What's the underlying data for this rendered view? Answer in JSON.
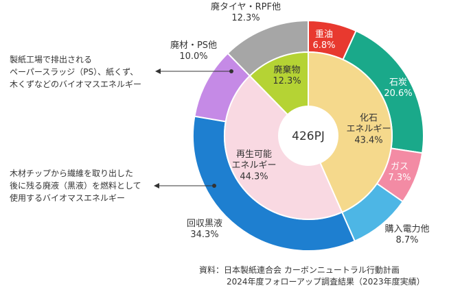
{
  "chart_data": {
    "type": "pie",
    "center_label": "426PJ",
    "inner_ring": [
      {
        "name": "化石\nエネルギー",
        "value": 43.4,
        "label": "43.4%",
        "color": "#f5d98c",
        "text_color": "#333333"
      },
      {
        "name": "再生可能\nエネルギー",
        "value": 44.3,
        "label": "44.3%",
        "color": "#f9d9e2",
        "text_color": "#333333"
      },
      {
        "name": "廃棄物",
        "value": 12.3,
        "label": "12.3%",
        "color": "#b5d334",
        "text_color": "#333333"
      }
    ],
    "outer_ring": [
      {
        "name": "重油",
        "value": 6.8,
        "label": "6.8%",
        "color": "#e8392f",
        "label_pos": "inside",
        "text_color": "#ffffff"
      },
      {
        "name": "石炭",
        "value": 20.6,
        "label": "20.6%",
        "color": "#1aa98a",
        "label_pos": "inside",
        "text_color": "#ffffff"
      },
      {
        "name": "ガス",
        "value": 7.3,
        "label": "7.3%",
        "color": "#f38ba4",
        "label_pos": "inside",
        "text_color": "#ffffff"
      },
      {
        "name": "購入電力他",
        "value": 8.7,
        "label": "8.7%",
        "color": "#4db6e5",
        "label_pos": "outside",
        "text_color": "#333333"
      },
      {
        "name": "回収黒液",
        "value": 34.3,
        "label": "34.3%",
        "color": "#1e7fd0",
        "label_pos": "outside",
        "text_color": "#333333"
      },
      {
        "name": "廃材・PS他",
        "value": 10.0,
        "label": "10.0%",
        "color": "#c58ae6",
        "label_pos": "outside",
        "text_color": "#333333"
      },
      {
        "name": "廃タイヤ・RPF他",
        "value": 12.3,
        "label": "12.3%",
        "color": "#a6a6a6",
        "label_pos": "outside",
        "text_color": "#333333"
      }
    ]
  },
  "notes": {
    "pulp_sludge": [
      "製紙工場で排出される",
      "ペーパースラッジ（PS）、紙くず、",
      "木くずなどのバイオマスエネルギー"
    ],
    "black_liquor": [
      "木材チップから繊維を取り出した",
      "後に残る廃液（黒液）を燃料として",
      "使用するバイオマスエネルギー"
    ]
  },
  "source": {
    "line1": "資料：日本製紙連合会 カーボンニュートラル行動計画",
    "line2": "2024年度フォローアップ調査結果（2023年度実績）"
  },
  "colors": {
    "arrow": "#333333",
    "center_fill": "#ffffff"
  }
}
